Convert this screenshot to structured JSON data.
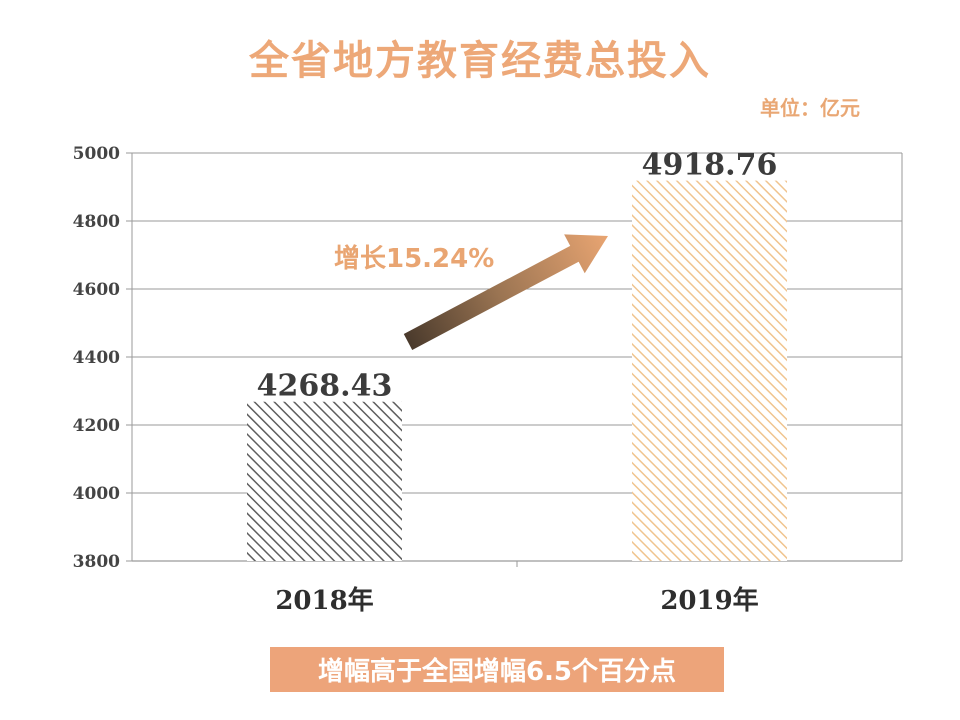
{
  "chart_data": {
    "type": "bar",
    "title": "全省地方教育经费总投入",
    "unit_label": "单位：亿元",
    "categories": [
      "2018年",
      "2019年"
    ],
    "values": [
      4268.43,
      4918.76
    ],
    "value_labels": [
      "4268.43",
      "4918.76"
    ],
    "ylim": [
      3800,
      5000
    ],
    "yticks": [
      3800,
      4000,
      4200,
      4400,
      4600,
      4800,
      5000
    ],
    "grid": true,
    "bar_colors": [
      "#5E5E5E",
      "#F0C48E"
    ],
    "growth_annotation": "增长15.24%",
    "growth_color": "#E9A572"
  },
  "footer_banner": "增幅高于全国增幅6.5个百分点"
}
